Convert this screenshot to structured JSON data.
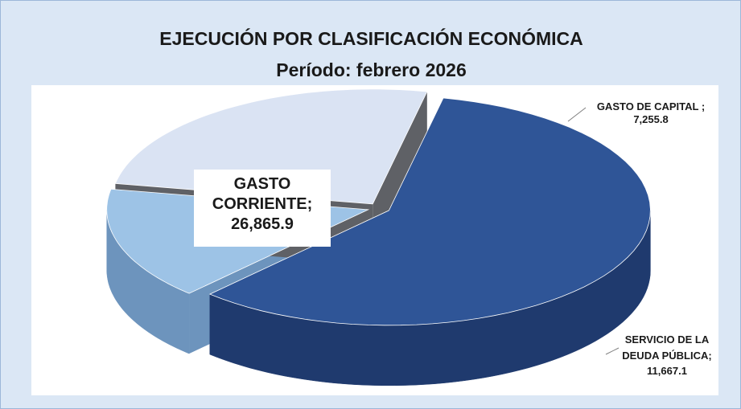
{
  "chart_data": {
    "type": "pie3d",
    "title": "EJECUCIÓN POR CLASIFICACIÓN ECONÓMICA",
    "subtitle": "Período: febrero 2026",
    "categories": [
      "GASTO CORRIENTE",
      "GASTO DE CAPITAL",
      "SERVICIO DE LA DEUDA PÚBLICA"
    ],
    "values": [
      26865.9,
      7255.8,
      11667.1
    ],
    "value_labels": [
      "26,865.9",
      "7,255.8",
      "11,667.1"
    ],
    "label_separator": ";",
    "colors": [
      "#2f5597",
      "#9dc3e6",
      "#dae3f3"
    ],
    "side_colors": [
      "#1f3a6e",
      "#6d94bd",
      "#5f6166"
    ]
  }
}
